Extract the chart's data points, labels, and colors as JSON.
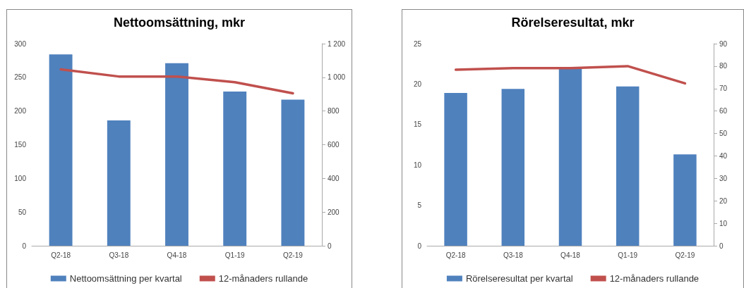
{
  "chart_data": [
    {
      "type": "bar",
      "title": "Nettoomsättning, mkr",
      "categories": [
        "Q2-18",
        "Q3-18",
        "Q4-18",
        "Q1-19",
        "Q2-19"
      ],
      "series": [
        {
          "name": "Nettoomsättning per kvartal",
          "color": "#4f81bd",
          "values": [
            284,
            186,
            271,
            229,
            217
          ]
        },
        {
          "name": "12-månaders rullande",
          "type": "line",
          "axis": "y2",
          "color": "#c0504d",
          "values": [
            1047,
            1005,
            1005,
            971,
            905
          ]
        }
      ],
      "ylim": [
        0,
        300
      ],
      "yticks": [
        0,
        50,
        100,
        150,
        200,
        250,
        300
      ],
      "y2lim": [
        0,
        1200
      ],
      "y2ticks": [
        0,
        200,
        400,
        600,
        800,
        {
          "value": 1000,
          "label": "1 000"
        },
        {
          "value": 1200,
          "label": "1 200"
        }
      ],
      "grid": false,
      "legend": "bottom",
      "marker": "none",
      "line_style": "solid"
    },
    {
      "type": "bar",
      "title": "Rörelseresultat, mkr",
      "categories": [
        "Q2-18",
        "Q3-18",
        "Q4-18",
        "Q1-19",
        "Q2-19"
      ],
      "series": [
        {
          "name": "Rörelseresultat per kvartal",
          "color": "#4f81bd",
          "values": [
            18.9,
            19.4,
            21.9,
            19.7,
            11.3
          ]
        },
        {
          "name": "12-månaders rullande",
          "type": "line",
          "axis": "y2",
          "color": "#c0504d",
          "values": [
            78.4,
            79.1,
            79.1,
            80.0,
            72.3
          ]
        }
      ],
      "ylim": [
        0,
        25
      ],
      "yticks": [
        0,
        5,
        10,
        15,
        20,
        25
      ],
      "y2lim": [
        0,
        90
      ],
      "y2ticks": [
        0,
        10,
        20,
        30,
        40,
        50,
        60,
        70,
        80,
        90
      ],
      "grid": false,
      "legend": "bottom",
      "marker": "none",
      "line_style": "solid"
    }
  ]
}
